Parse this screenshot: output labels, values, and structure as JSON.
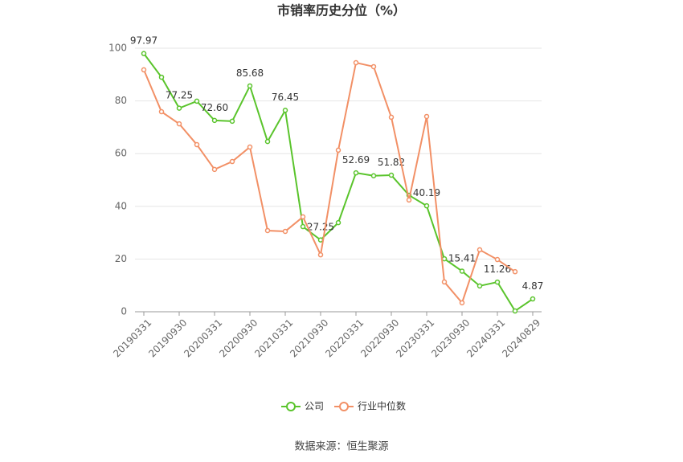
{
  "chart_data": {
    "type": "line",
    "title": "市销率历史分位（%）",
    "source": "数据来源：恒生聚源",
    "categories": [
      "20190331",
      null,
      "20190930",
      null,
      "20200331",
      null,
      "20200930",
      null,
      "20210331",
      null,
      "20210930",
      null,
      "20220331",
      null,
      "20220930",
      null,
      "20230331",
      null,
      "20230930",
      null,
      "20240331",
      null,
      "20240829"
    ],
    "series": [
      {
        "name": "公司",
        "color": "#5ac42c",
        "values": [
          97.97,
          89.0,
          77.25,
          79.9,
          72.6,
          72.3,
          85.68,
          64.6,
          76.45,
          32.3,
          27.25,
          33.8,
          52.69,
          51.6,
          51.82,
          44.2,
          40.19,
          20.1,
          15.41,
          9.8,
          11.26,
          0.3,
          4.87
        ],
        "value_labels": [
          "97.97",
          null,
          "77.25",
          null,
          "72.60",
          null,
          "85.68",
          null,
          "76.45",
          null,
          "27.25",
          null,
          "52.69",
          null,
          "51.82",
          null,
          "40.19",
          null,
          "15.41",
          null,
          "11.26",
          null,
          "4.87"
        ]
      },
      {
        "name": "行业中位数",
        "color": "#f29066",
        "values": [
          91.8,
          75.9,
          71.3,
          63.4,
          54.0,
          57.0,
          62.5,
          30.8,
          30.5,
          36.0,
          21.6,
          61.3,
          94.5,
          93.0,
          73.8,
          42.4,
          74.1,
          11.3,
          3.4,
          23.5,
          19.8,
          15.2,
          null
        ]
      }
    ],
    "ylim": [
      0,
      100
    ],
    "yticks": [
      0,
      20,
      40,
      60,
      80,
      100
    ],
    "grid": true
  }
}
